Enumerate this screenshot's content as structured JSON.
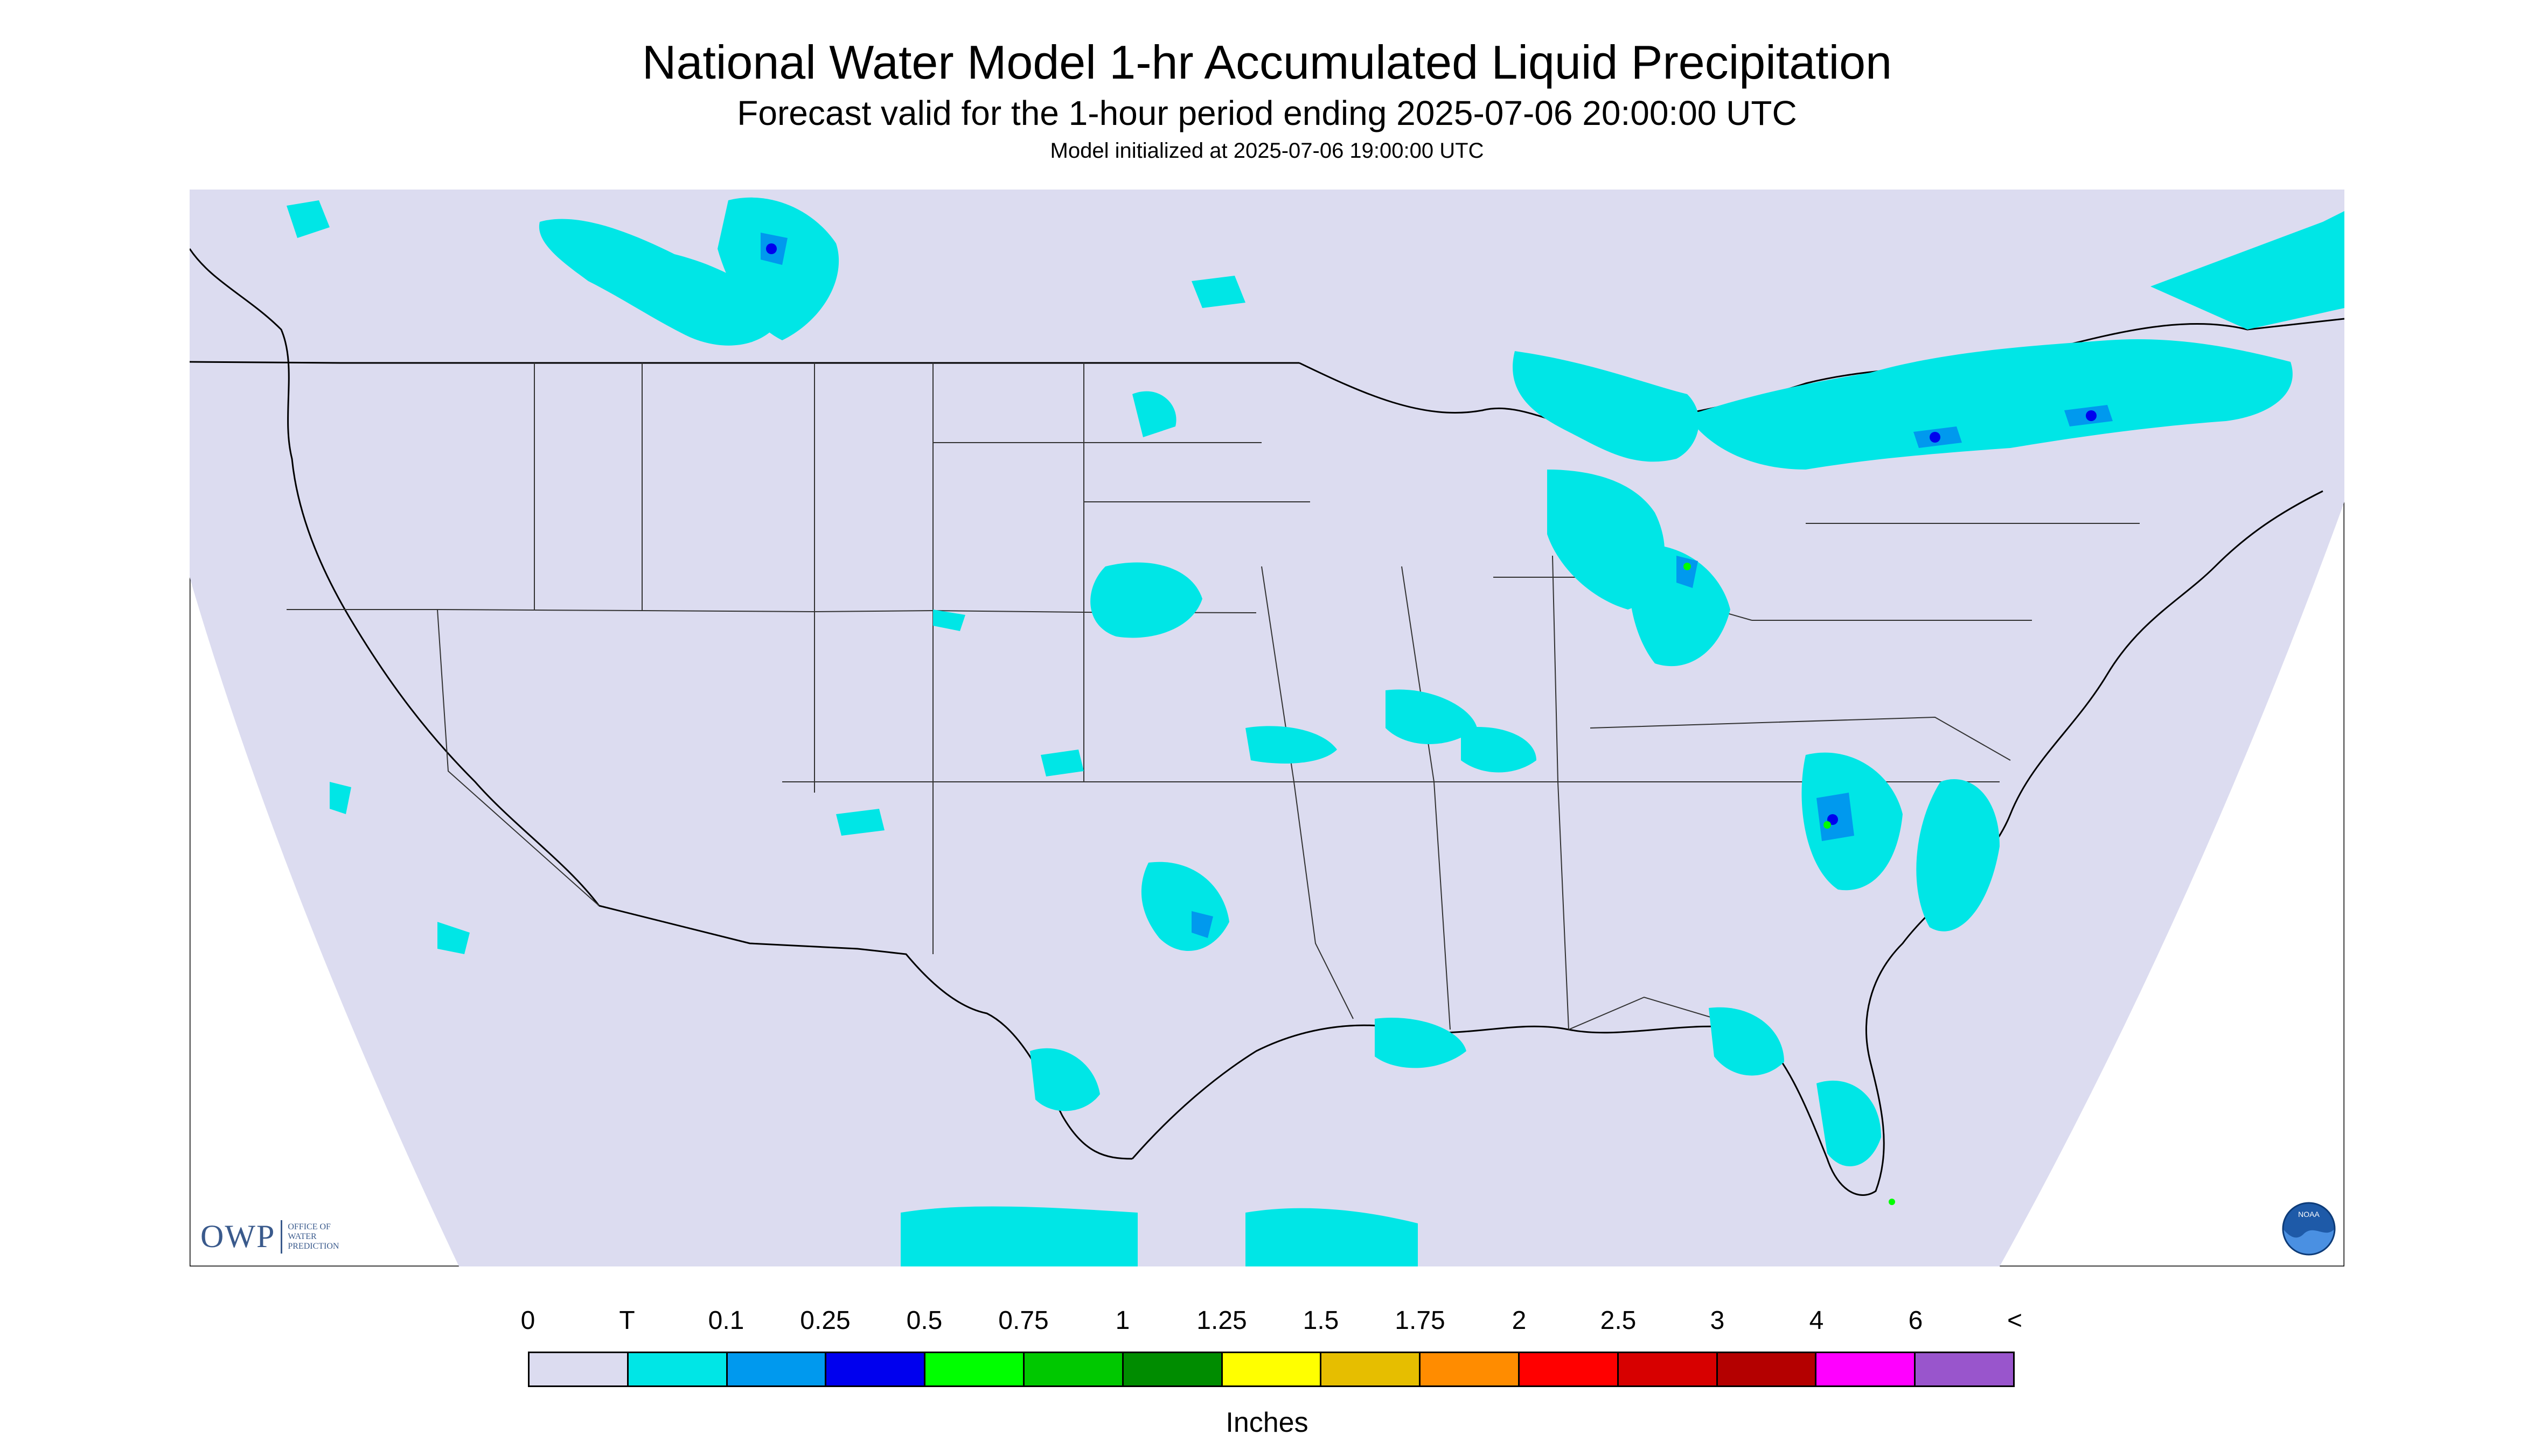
{
  "title": "National Water Model 1-hr Accumulated Liquid Precipitation",
  "subtitle": "Forecast valid for the 1-hour period ending 2025-07-06 20:00:00 UTC",
  "init_time": "Model initialized at 2025-07-06 19:00:00 UTC",
  "logos": {
    "owp_big": "OWP",
    "owp_small": [
      "OFFICE OF",
      "WATER",
      "PREDICTION"
    ],
    "noaa": "NOAA"
  },
  "legend": {
    "labels": [
      "0",
      "T",
      "0.1",
      "0.25",
      "0.5",
      "0.75",
      "1",
      "1.25",
      "1.5",
      "1.75",
      "2",
      "2.5",
      "3",
      "4",
      "6",
      "<"
    ],
    "colors": [
      "#dcdcf0",
      "#00e6e6",
      "#0099ee",
      "#0000ee",
      "#00ff00",
      "#00c800",
      "#008c00",
      "#ffff00",
      "#e6be00",
      "#ff8c00",
      "#ff0000",
      "#d70000",
      "#b40000",
      "#ff00ff",
      "#9955cc"
    ],
    "units": "Inches"
  },
  "colors": {
    "background": "#dcdcf0",
    "trace": "#00e6e6",
    "light": "#0099ee",
    "moderate": "#0000ee",
    "heavy": "#00ff00"
  }
}
